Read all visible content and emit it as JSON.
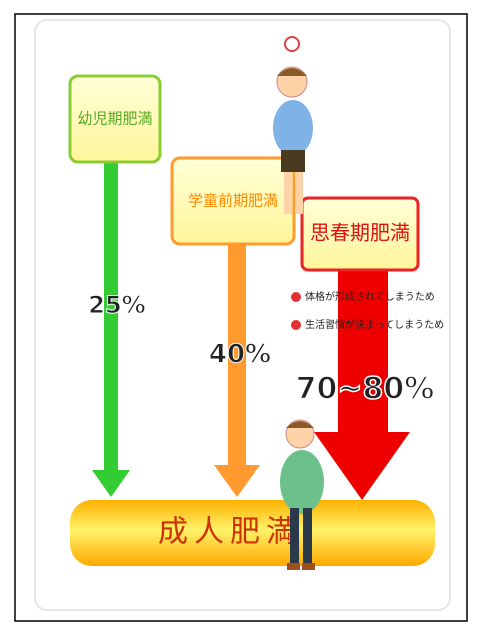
{
  "stages": [
    {
      "label": "幼児期肥満",
      "rate": "25%"
    },
    {
      "label": "学童前期肥満",
      "rate": "40%"
    },
    {
      "label": "思春期肥満",
      "rate": "70~80%"
    }
  ],
  "notes": [
    "体格が形成されてしまうため",
    "生活習慣が決まってしまうため"
  ],
  "result": "成人肥満"
}
